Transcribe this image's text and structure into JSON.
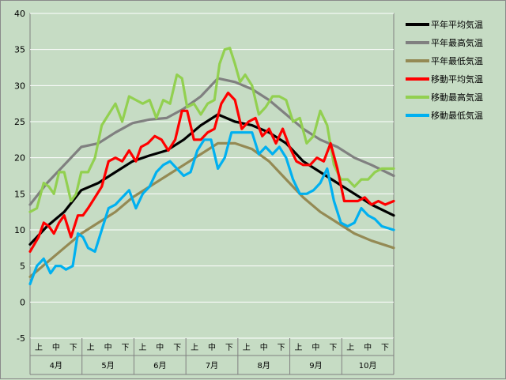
{
  "chart_data": {
    "type": "line",
    "title": "",
    "xlabel": "",
    "ylabel": "",
    "ylim": [
      -5,
      40
    ],
    "y_ticks": [
      -5,
      0,
      5,
      10,
      15,
      20,
      25,
      30,
      35,
      40
    ],
    "grid": true,
    "legend_position": "right",
    "months": [
      "4月",
      "5月",
      "6月",
      "7月",
      "8月",
      "9月",
      "10月"
    ],
    "periods": [
      "上",
      "中",
      "下"
    ],
    "x_note": "x values are day offsets starting Apr 1 (0) through Oct 31 (213)",
    "series": [
      {
        "name": "平年平均気温",
        "color": "#000000",
        "x": [
          0,
          10,
          20,
          30,
          40,
          50,
          60,
          70,
          80,
          90,
          100,
          110,
          120,
          130,
          140,
          150,
          160,
          170,
          180,
          190,
          200,
          213
        ],
        "values": [
          8,
          10.5,
          12.5,
          15.5,
          16.5,
          18,
          19.5,
          20.3,
          21,
          22.5,
          24.5,
          26,
          25,
          24.5,
          23.5,
          22,
          19.5,
          18,
          16.5,
          15,
          13.5,
          12
        ]
      },
      {
        "name": "平年最高気温",
        "color": "#808080",
        "x": [
          0,
          10,
          20,
          30,
          40,
          50,
          60,
          70,
          80,
          90,
          100,
          110,
          120,
          130,
          140,
          150,
          160,
          170,
          180,
          190,
          200,
          213
        ],
        "values": [
          13.5,
          16.5,
          19,
          21.5,
          22,
          23.5,
          24.8,
          25.3,
          25.5,
          26.8,
          28.5,
          31,
          30.5,
          29.5,
          28,
          26,
          24,
          22.5,
          21.5,
          20,
          19,
          17.5
        ]
      },
      {
        "name": "平年最低気温",
        "color": "#948a54",
        "x": [
          0,
          10,
          20,
          30,
          40,
          50,
          60,
          70,
          80,
          90,
          100,
          110,
          120,
          130,
          140,
          150,
          160,
          170,
          180,
          190,
          200,
          213
        ],
        "values": [
          3.5,
          5.5,
          7.5,
          9.5,
          11,
          12.5,
          14.5,
          16,
          17.5,
          19,
          20.5,
          22,
          22,
          21.2,
          19.5,
          17,
          14.5,
          12.5,
          11,
          9.5,
          8.5,
          7.5
        ]
      },
      {
        "name": "移動平均気温",
        "color": "#ff0000",
        "x": [
          0,
          5,
          8,
          11,
          14,
          17,
          20,
          24,
          28,
          31,
          34,
          38,
          42,
          46,
          50,
          54,
          58,
          62,
          65,
          69,
          73,
          77,
          81,
          85,
          89,
          92,
          96,
          100,
          104,
          108,
          112,
          116,
          120,
          124,
          128,
          132,
          136,
          140,
          144,
          148,
          152,
          156,
          160,
          164,
          168,
          172,
          176,
          180,
          184,
          188,
          192,
          196,
          200,
          204,
          208,
          213
        ],
        "values": [
          7,
          9,
          11,
          10.5,
          9.5,
          11,
          12,
          9,
          12,
          12,
          13,
          14.5,
          16,
          19.5,
          20,
          19.5,
          21,
          19.5,
          21.5,
          22,
          23,
          22.5,
          21,
          22.5,
          26.5,
          26.5,
          22.5,
          22.5,
          23.5,
          24,
          27.5,
          29,
          28,
          24,
          25,
          25.5,
          23,
          24,
          22,
          24,
          21.5,
          19.5,
          19,
          19,
          20,
          19.5,
          22,
          18.5,
          14,
          14,
          14,
          14.5,
          13.5,
          14,
          13.5,
          14
        ]
      },
      {
        "name": "移動最高気温",
        "color": "#92d050",
        "x": [
          0,
          4,
          8,
          11,
          14,
          17,
          20,
          24,
          27,
          30,
          34,
          38,
          42,
          46,
          50,
          54,
          58,
          62,
          66,
          70,
          74,
          78,
          82,
          86,
          89,
          92,
          96,
          100,
          104,
          108,
          111,
          114,
          117,
          120,
          123,
          126,
          130,
          134,
          138,
          142,
          146,
          150,
          154,
          158,
          162,
          166,
          170,
          174,
          178,
          182,
          186,
          190,
          194,
          198,
          202,
          206,
          213
        ],
        "values": [
          12.5,
          13,
          16.5,
          16,
          15,
          18,
          18,
          14,
          15,
          18,
          18,
          20,
          24.5,
          26,
          27.5,
          25,
          28.5,
          28,
          27.5,
          28,
          25.5,
          28,
          27.5,
          31.5,
          31,
          27,
          27.5,
          26,
          27.5,
          28,
          33,
          35,
          35.2,
          33,
          30.5,
          31.5,
          30,
          26,
          27,
          28.5,
          28.5,
          28,
          25,
          25.5,
          22,
          23,
          26.5,
          24.5,
          19,
          17,
          17,
          16,
          17,
          17,
          18,
          18.5,
          18.5
        ]
      },
      {
        "name": "移動最低気温",
        "color": "#00b0f0",
        "x": [
          0,
          4,
          8,
          12,
          15,
          18,
          21,
          25,
          28,
          31,
          34,
          38,
          42,
          46,
          50,
          54,
          58,
          62,
          66,
          70,
          74,
          78,
          82,
          86,
          90,
          94,
          98,
          102,
          106,
          110,
          114,
          118,
          122,
          126,
          130,
          134,
          138,
          142,
          146,
          150,
          154,
          158,
          162,
          166,
          170,
          174,
          178,
          182,
          186,
          190,
          194,
          198,
          202,
          206,
          213
        ],
        "values": [
          2.5,
          5,
          6,
          4,
          5,
          5,
          4.5,
          5,
          9.5,
          9,
          7.5,
          7,
          10,
          13,
          13.5,
          14.5,
          15.5,
          13,
          15,
          16,
          18,
          19,
          19.5,
          18.5,
          17.5,
          18,
          21,
          22.5,
          22.5,
          18.5,
          20,
          23.5,
          23.5,
          23.5,
          23.5,
          20.5,
          21.5,
          20.5,
          21.5,
          20,
          17,
          15,
          15,
          15.5,
          16.5,
          18.5,
          14,
          11,
          10.5,
          11,
          13,
          12,
          11.5,
          10.5,
          10
        ]
      }
    ]
  }
}
